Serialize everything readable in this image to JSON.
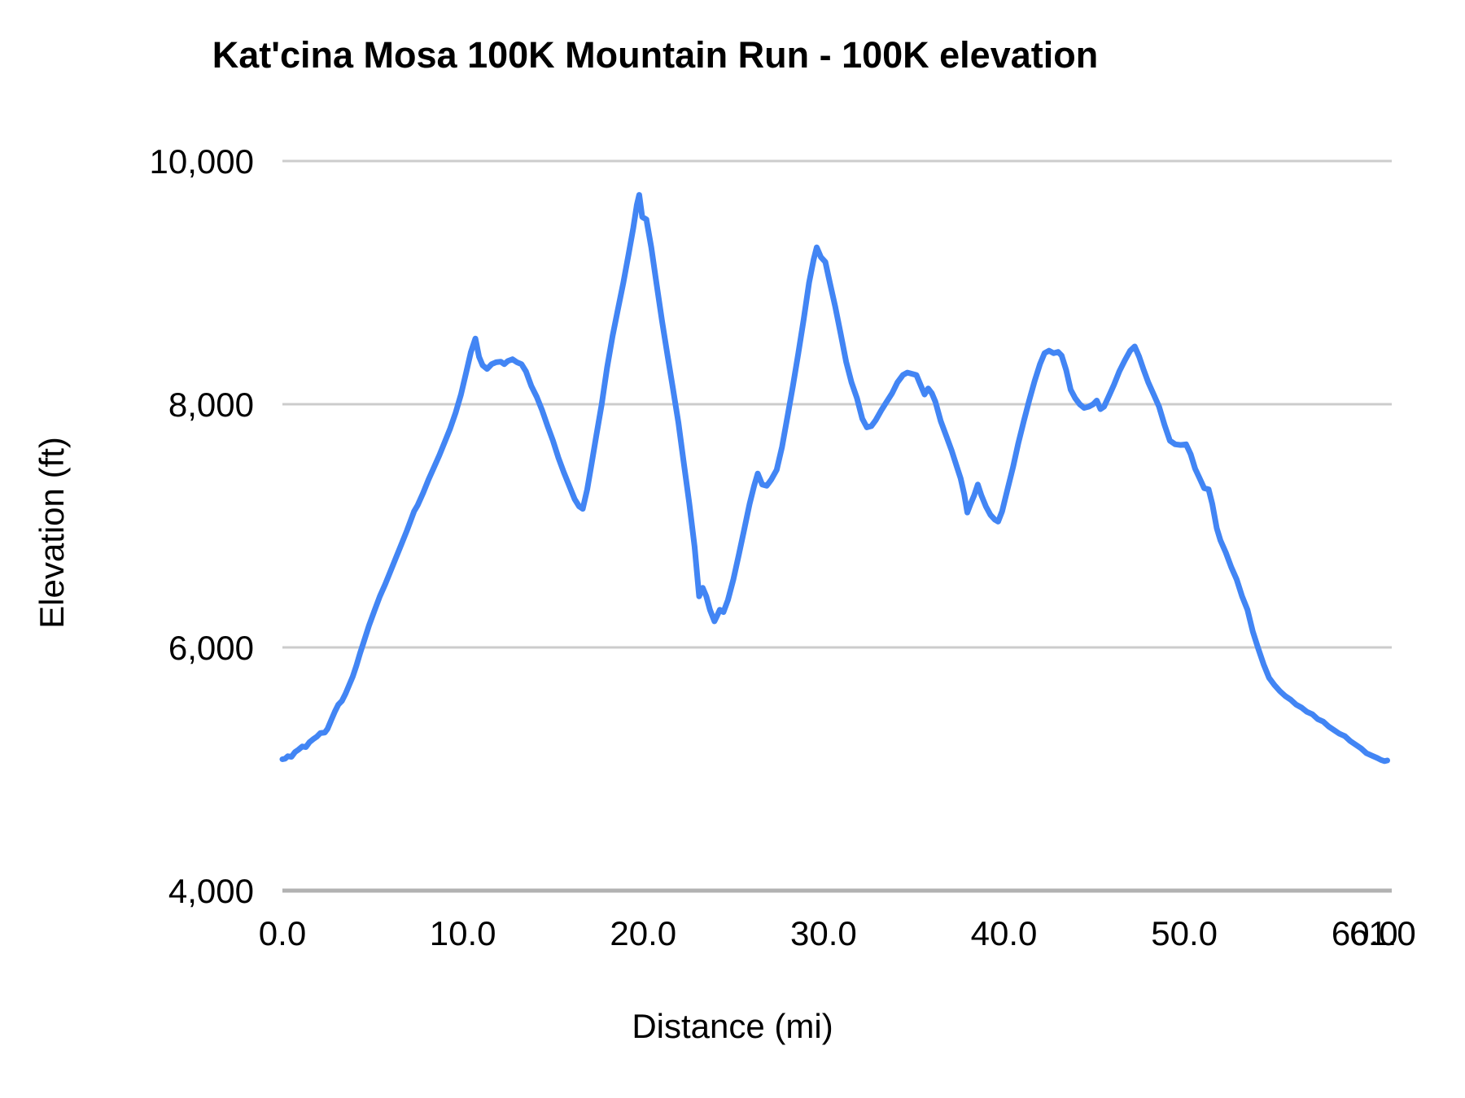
{
  "header": {
    "title": "Kat'cina Mosa 100K Mountain Run - 100K elevation"
  },
  "chart_data": {
    "type": "line",
    "title": "Kat'cina Mosa 100K Mountain Run - 100K elevation",
    "xlabel": "Distance (mi)",
    "ylabel": "Elevation (ft)",
    "x_range": [
      0,
      61.5
    ],
    "y_range": [
      4000,
      10000
    ],
    "grid": true,
    "legend_position": "none",
    "line_color": "#4285F4",
    "grid_color": "#cccccc",
    "axis_line_color": "#b2b2b2",
    "text_color": "#000000",
    "x_ticks": [
      {
        "value": 0,
        "label": "0.0"
      },
      {
        "value": 10,
        "label": "10.0"
      },
      {
        "value": 20,
        "label": "20.0"
      },
      {
        "value": 30,
        "label": "30.0"
      },
      {
        "value": 40,
        "label": "40.0"
      },
      {
        "value": 50,
        "label": "50.0"
      },
      {
        "value": 60,
        "label": "60.0"
      },
      {
        "value": 61,
        "label": "61.0"
      }
    ],
    "y_ticks": [
      {
        "value": 4000,
        "label": "4,000"
      },
      {
        "value": 6000,
        "label": "6,000"
      },
      {
        "value": 8000,
        "label": "8,000"
      },
      {
        "value": 10000,
        "label": "10,000"
      }
    ],
    "series": [
      {
        "name": "100K elevation",
        "points": [
          [
            0.0,
            5080
          ],
          [
            0.15,
            5085
          ],
          [
            0.3,
            5105
          ],
          [
            0.5,
            5100
          ],
          [
            0.7,
            5140
          ],
          [
            0.9,
            5160
          ],
          [
            1.1,
            5185
          ],
          [
            1.3,
            5180
          ],
          [
            1.5,
            5220
          ],
          [
            1.7,
            5245
          ],
          [
            1.9,
            5265
          ],
          [
            2.1,
            5295
          ],
          [
            2.35,
            5300
          ],
          [
            2.5,
            5330
          ],
          [
            2.7,
            5400
          ],
          [
            2.9,
            5470
          ],
          [
            3.1,
            5530
          ],
          [
            3.3,
            5560
          ],
          [
            3.5,
            5620
          ],
          [
            3.7,
            5690
          ],
          [
            3.9,
            5760
          ],
          [
            4.1,
            5850
          ],
          [
            4.3,
            5950
          ],
          [
            4.5,
            6040
          ],
          [
            4.8,
            6180
          ],
          [
            5.1,
            6300
          ],
          [
            5.4,
            6420
          ],
          [
            5.7,
            6520
          ],
          [
            6.0,
            6630
          ],
          [
            6.3,
            6740
          ],
          [
            6.6,
            6850
          ],
          [
            6.9,
            6960
          ],
          [
            7.1,
            7040
          ],
          [
            7.3,
            7120
          ],
          [
            7.5,
            7170
          ],
          [
            7.8,
            7270
          ],
          [
            8.1,
            7380
          ],
          [
            8.4,
            7480
          ],
          [
            8.7,
            7580
          ],
          [
            9.0,
            7690
          ],
          [
            9.3,
            7800
          ],
          [
            9.6,
            7930
          ],
          [
            9.9,
            8080
          ],
          [
            10.2,
            8270
          ],
          [
            10.45,
            8430
          ],
          [
            10.7,
            8540
          ],
          [
            10.9,
            8390
          ],
          [
            11.1,
            8320
          ],
          [
            11.35,
            8290
          ],
          [
            11.6,
            8330
          ],
          [
            11.85,
            8345
          ],
          [
            12.1,
            8350
          ],
          [
            12.3,
            8330
          ],
          [
            12.5,
            8355
          ],
          [
            12.75,
            8370
          ],
          [
            13.0,
            8345
          ],
          [
            13.25,
            8330
          ],
          [
            13.5,
            8270
          ],
          [
            13.8,
            8150
          ],
          [
            14.1,
            8060
          ],
          [
            14.4,
            7950
          ],
          [
            14.7,
            7820
          ],
          [
            15.0,
            7700
          ],
          [
            15.3,
            7560
          ],
          [
            15.6,
            7440
          ],
          [
            15.9,
            7330
          ],
          [
            16.2,
            7220
          ],
          [
            16.45,
            7160
          ],
          [
            16.65,
            7140
          ],
          [
            16.9,
            7300
          ],
          [
            17.15,
            7520
          ],
          [
            17.4,
            7740
          ],
          [
            17.7,
            8000
          ],
          [
            18.0,
            8300
          ],
          [
            18.3,
            8560
          ],
          [
            18.6,
            8780
          ],
          [
            18.9,
            9000
          ],
          [
            19.2,
            9240
          ],
          [
            19.45,
            9450
          ],
          [
            19.65,
            9640
          ],
          [
            19.78,
            9722
          ],
          [
            19.95,
            9540
          ],
          [
            20.18,
            9520
          ],
          [
            20.45,
            9290
          ],
          [
            20.75,
            8980
          ],
          [
            21.05,
            8680
          ],
          [
            21.35,
            8400
          ],
          [
            21.65,
            8130
          ],
          [
            21.95,
            7850
          ],
          [
            22.25,
            7520
          ],
          [
            22.55,
            7190
          ],
          [
            22.85,
            6830
          ],
          [
            23.1,
            6420
          ],
          [
            23.3,
            6490
          ],
          [
            23.5,
            6420
          ],
          [
            23.7,
            6310
          ],
          [
            23.95,
            6215
          ],
          [
            24.1,
            6260
          ],
          [
            24.25,
            6310
          ],
          [
            24.45,
            6290
          ],
          [
            24.7,
            6390
          ],
          [
            25.0,
            6560
          ],
          [
            25.3,
            6760
          ],
          [
            25.6,
            6970
          ],
          [
            25.9,
            7180
          ],
          [
            26.15,
            7330
          ],
          [
            26.35,
            7430
          ],
          [
            26.6,
            7340
          ],
          [
            26.85,
            7330
          ],
          [
            27.1,
            7380
          ],
          [
            27.4,
            7460
          ],
          [
            27.7,
            7650
          ],
          [
            28.0,
            7900
          ],
          [
            28.3,
            8150
          ],
          [
            28.6,
            8420
          ],
          [
            28.9,
            8700
          ],
          [
            29.2,
            9000
          ],
          [
            29.45,
            9190
          ],
          [
            29.62,
            9290
          ],
          [
            29.85,
            9210
          ],
          [
            30.1,
            9170
          ],
          [
            30.35,
            9000
          ],
          [
            30.65,
            8800
          ],
          [
            30.95,
            8580
          ],
          [
            31.25,
            8350
          ],
          [
            31.55,
            8180
          ],
          [
            31.85,
            8050
          ],
          [
            32.15,
            7880
          ],
          [
            32.4,
            7810
          ],
          [
            32.65,
            7820
          ],
          [
            32.9,
            7870
          ],
          [
            33.2,
            7950
          ],
          [
            33.5,
            8020
          ],
          [
            33.8,
            8090
          ],
          [
            34.1,
            8180
          ],
          [
            34.4,
            8240
          ],
          [
            34.65,
            8260
          ],
          [
            34.9,
            8250
          ],
          [
            35.15,
            8240
          ],
          [
            35.4,
            8150
          ],
          [
            35.6,
            8080
          ],
          [
            35.8,
            8130
          ],
          [
            36.0,
            8090
          ],
          [
            36.2,
            8020
          ],
          [
            36.5,
            7860
          ],
          [
            36.8,
            7740
          ],
          [
            37.1,
            7620
          ],
          [
            37.4,
            7480
          ],
          [
            37.6,
            7390
          ],
          [
            37.8,
            7260
          ],
          [
            37.97,
            7110
          ],
          [
            38.15,
            7180
          ],
          [
            38.35,
            7250
          ],
          [
            38.55,
            7340
          ],
          [
            38.75,
            7250
          ],
          [
            39.0,
            7160
          ],
          [
            39.25,
            7090
          ],
          [
            39.5,
            7050
          ],
          [
            39.68,
            7035
          ],
          [
            39.9,
            7120
          ],
          [
            40.2,
            7300
          ],
          [
            40.5,
            7480
          ],
          [
            40.8,
            7680
          ],
          [
            41.1,
            7860
          ],
          [
            41.4,
            8030
          ],
          [
            41.7,
            8190
          ],
          [
            42.0,
            8330
          ],
          [
            42.25,
            8420
          ],
          [
            42.5,
            8440
          ],
          [
            42.75,
            8420
          ],
          [
            43.0,
            8430
          ],
          [
            43.2,
            8400
          ],
          [
            43.45,
            8280
          ],
          [
            43.7,
            8120
          ],
          [
            43.95,
            8050
          ],
          [
            44.2,
            8000
          ],
          [
            44.45,
            7970
          ],
          [
            44.7,
            7980
          ],
          [
            44.95,
            8000
          ],
          [
            45.15,
            8030
          ],
          [
            45.35,
            7960
          ],
          [
            45.55,
            7980
          ],
          [
            45.8,
            8060
          ],
          [
            46.1,
            8160
          ],
          [
            46.4,
            8270
          ],
          [
            46.7,
            8360
          ],
          [
            47.0,
            8440
          ],
          [
            47.25,
            8475
          ],
          [
            47.5,
            8390
          ],
          [
            47.75,
            8280
          ],
          [
            48.0,
            8180
          ],
          [
            48.3,
            8080
          ],
          [
            48.6,
            7980
          ],
          [
            48.9,
            7830
          ],
          [
            49.2,
            7700
          ],
          [
            49.5,
            7670
          ],
          [
            49.8,
            7665
          ],
          [
            50.1,
            7670
          ],
          [
            50.35,
            7590
          ],
          [
            50.6,
            7470
          ],
          [
            50.85,
            7390
          ],
          [
            51.1,
            7310
          ],
          [
            51.35,
            7300
          ],
          [
            51.55,
            7180
          ],
          [
            51.8,
            6980
          ],
          [
            52.0,
            6880
          ],
          [
            52.3,
            6780
          ],
          [
            52.6,
            6660
          ],
          [
            52.9,
            6560
          ],
          [
            53.2,
            6420
          ],
          [
            53.5,
            6310
          ],
          [
            53.8,
            6130
          ],
          [
            54.1,
            5990
          ],
          [
            54.4,
            5860
          ],
          [
            54.7,
            5750
          ],
          [
            55.0,
            5690
          ],
          [
            55.3,
            5640
          ],
          [
            55.6,
            5600
          ],
          [
            55.9,
            5570
          ],
          [
            56.2,
            5530
          ],
          [
            56.5,
            5505
          ],
          [
            56.8,
            5470
          ],
          [
            57.1,
            5450
          ],
          [
            57.4,
            5410
          ],
          [
            57.7,
            5390
          ],
          [
            58.0,
            5350
          ],
          [
            58.3,
            5320
          ],
          [
            58.6,
            5290
          ],
          [
            58.9,
            5270
          ],
          [
            59.2,
            5230
          ],
          [
            59.5,
            5200
          ],
          [
            59.8,
            5170
          ],
          [
            60.1,
            5130
          ],
          [
            60.4,
            5110
          ],
          [
            60.7,
            5090
          ],
          [
            60.9,
            5075
          ],
          [
            61.1,
            5065
          ],
          [
            61.25,
            5070
          ]
        ]
      }
    ]
  }
}
